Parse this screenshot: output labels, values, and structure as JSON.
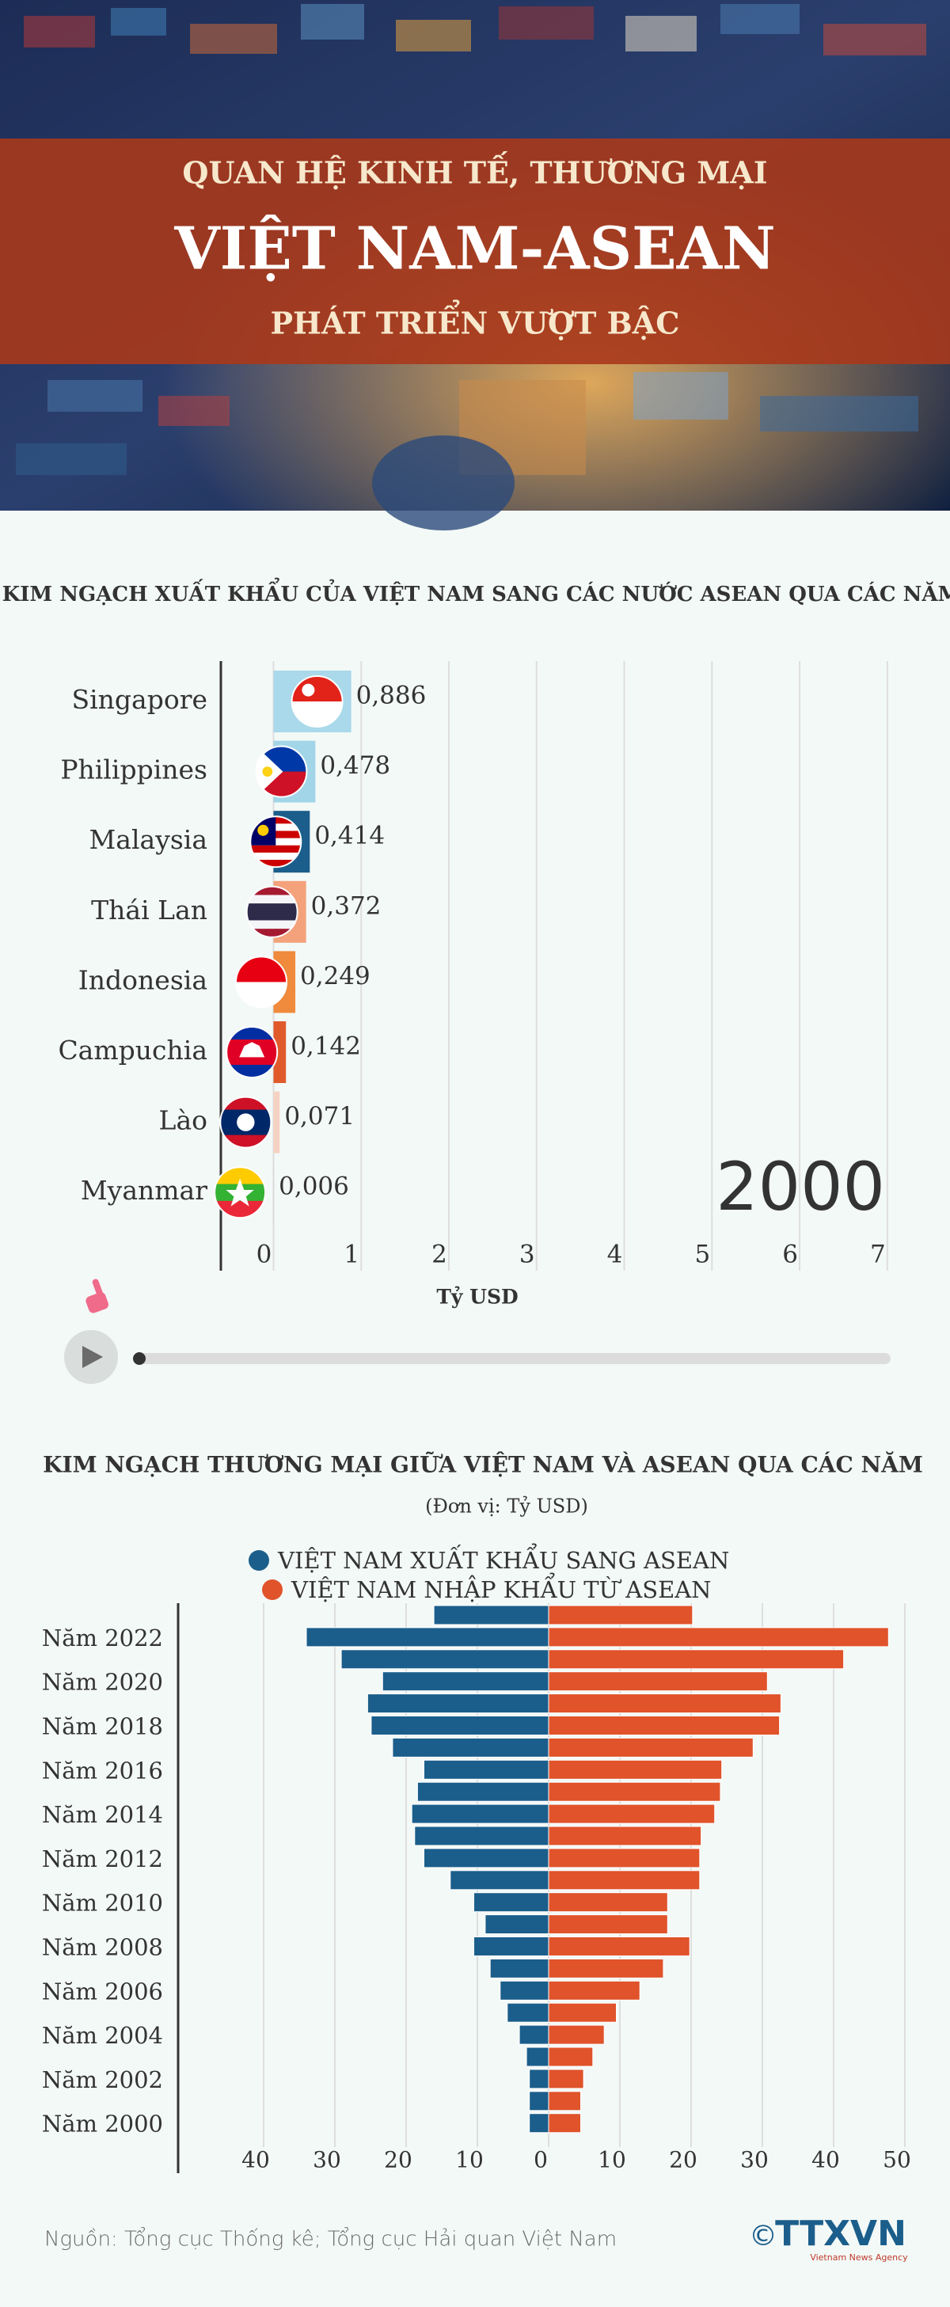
{
  "header": {
    "line1": "QUAN HỆ KINH TẾ, THƯƠNG MẠI",
    "line2": "VIỆT NAM-ASEAN",
    "line3": "PHÁT TRIỂN VƯỢT BẬC"
  },
  "chart_data": [
    {
      "type": "bar",
      "orientation": "horizontal",
      "title": "KIM NGẠCH XUẤT KHẨU CỦA VIỆT NAM SANG CÁC NƯỚC ASEAN QUA CÁC NĂM",
      "annotation": "2000",
      "x_label": "Tỷ USD",
      "categories": [
        "Singapore",
        "Philippines",
        "Malaysia",
        "Thái Lan",
        "Indonesia",
        "Campuchia",
        "Lào",
        "Myanmar"
      ],
      "values": [
        0.886,
        0.478,
        0.414,
        0.372,
        0.249,
        0.142,
        0.071,
        0.006
      ],
      "value_labels": [
        "0,886",
        "0,478",
        "0,414",
        "0,372",
        "0,249",
        "0,142",
        "0,071",
        "0,006"
      ],
      "colors": [
        "#a9d9ea",
        "#a3d5e8",
        "#1b5e8b",
        "#f4a27c",
        "#f08a3c",
        "#e05a2c",
        "#f6d2c2",
        "#cfd8d8"
      ],
      "xlim": [
        -0.6,
        7.2
      ],
      "xticks": [
        0,
        1,
        2,
        3,
        4,
        5,
        6,
        7
      ],
      "grid": true
    },
    {
      "type": "butterfly",
      "title": "KIM NGẠCH THƯƠNG MẠI GIỮA VIỆT NAM VÀ ASEAN QUA CÁC NĂM",
      "subtitle": "(Đơn vị: Tỷ USD)",
      "categories": [
        null,
        "Năm 2022",
        null,
        "Năm 2020",
        null,
        "Năm 2018",
        null,
        "Năm 2016",
        null,
        "Năm 2014",
        null,
        "Năm 2012",
        null,
        "Năm 2010",
        null,
        "Năm 2008",
        null,
        "Năm 2006",
        null,
        "Năm 2004",
        null,
        "Năm 2002",
        null,
        "Năm 2000"
      ],
      "series": [
        {
          "name": "VIỆT NAM XUẤT KHẨU SANG ASEAN",
          "color": "#1b5e8b",
          "side": "left",
          "values": [
            16.1,
            34.0,
            29.1,
            23.3,
            25.4,
            24.9,
            21.9,
            17.5,
            18.4,
            19.2,
            18.8,
            17.5,
            13.8,
            10.5,
            8.9,
            10.5,
            8.2,
            6.8,
            5.8,
            4.1,
            3.1,
            2.7,
            2.7,
            2.7
          ]
        },
        {
          "name": "VIỆT NAM NHẬP KHẨU TỪ ASEAN",
          "color": "#e0532b",
          "side": "right",
          "values": [
            20.2,
            47.7,
            41.4,
            30.7,
            32.6,
            32.4,
            28.7,
            24.3,
            24.1,
            23.3,
            21.4,
            21.2,
            21.2,
            16.7,
            16.7,
            19.8,
            16.1,
            12.8,
            9.5,
            7.8,
            6.2,
            4.9,
            4.5,
            4.5
          ]
        }
      ],
      "xlim": [
        -52,
        51
      ],
      "xticks": [
        {
          "value": -40,
          "label": "40"
        },
        {
          "value": -30,
          "label": "30"
        },
        {
          "value": -20,
          "label": "20"
        },
        {
          "value": -10,
          "label": "10"
        },
        0,
        10,
        20,
        30,
        40,
        50
      ],
      "grid": true
    }
  ],
  "footer": {
    "source": "Nguồn:  Tổng cục Thống kê; Tổng cục Hải quan Việt Nam",
    "copyright": "©",
    "logo": "TTXVN",
    "agency": "Vietnam News Agency"
  }
}
